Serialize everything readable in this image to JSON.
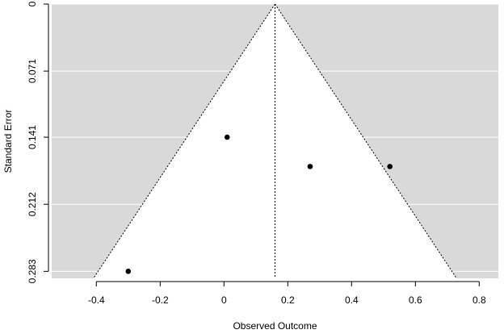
{
  "chart_data": {
    "type": "scatter",
    "xlabel": "Observed Outcome",
    "ylabel": "Standard Error",
    "xlim": [
      -0.54,
      0.86
    ],
    "ylim": [
      0,
      0.2904
    ],
    "y_reversed": true,
    "x_ticks": [
      -0.4,
      -0.2,
      0,
      0.2,
      0.4,
      0.6,
      0.8
    ],
    "x_tick_labels": [
      "-0.4",
      "-0.2",
      "0",
      "0.2",
      "0.4",
      "0.6",
      "0.8"
    ],
    "y_ticks": [
      0,
      0.071,
      0.141,
      0.212,
      0.283
    ],
    "y_tick_labels": [
      "0",
      "0.071",
      "0.141",
      "0.212",
      "0.283"
    ],
    "grid": true,
    "legend": "none",
    "summary_estimate": 0.16,
    "funnel_z": 1.96,
    "points": [
      {
        "x": 0.01,
        "y": 0.141
      },
      {
        "x": 0.27,
        "y": 0.172
      },
      {
        "x": 0.52,
        "y": 0.172
      },
      {
        "x": -0.3,
        "y": 0.283
      }
    ],
    "colors": {
      "panel_background": "#d9d9d9",
      "funnel_fill": "#ffffff",
      "gridline": "#ffffff",
      "points": "#000000",
      "lines": "#000000"
    }
  }
}
